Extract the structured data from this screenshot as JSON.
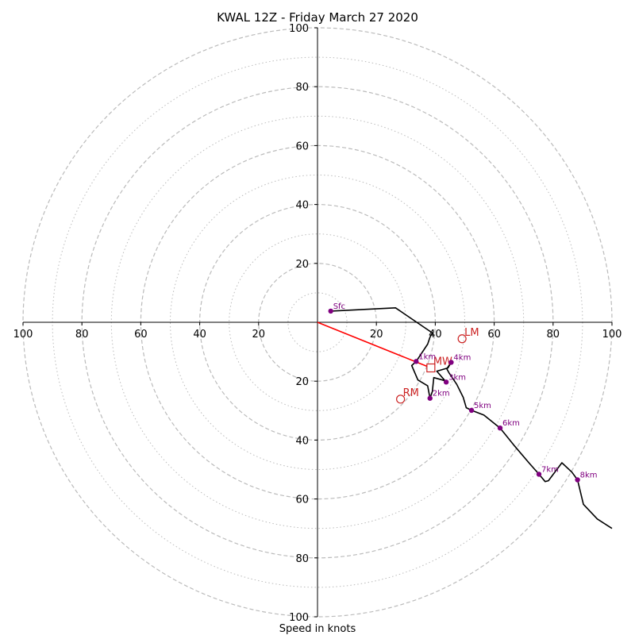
{
  "chart_data": {
    "type": "scatter",
    "subtype": "hodograph",
    "title": "KWAL 12Z - Friday March 27 2020",
    "xlabel": "Speed in knots",
    "ylabel": "",
    "xlim": [
      -100,
      100
    ],
    "ylim": [
      -100,
      100
    ],
    "rings": {
      "dashed": [
        20,
        40,
        60,
        80,
        100
      ],
      "dotted": [
        10,
        30,
        50,
        70,
        90
      ]
    },
    "ticks": {
      "x_left": [
        "100",
        "80",
        "60",
        "40",
        "20"
      ],
      "x_right": [
        "20",
        "40",
        "60",
        "80",
        "100"
      ],
      "y_top": [
        "100",
        "80",
        "60",
        "40",
        "20"
      ],
      "y_bottom": [
        "20",
        "40",
        "60",
        "80",
        "100"
      ]
    },
    "trace": [
      [
        4.5,
        3.8
      ],
      [
        26.5,
        4.9
      ],
      [
        39,
        -3.6
      ],
      [
        38.2,
        -5.1
      ],
      [
        37.4,
        -7.4
      ],
      [
        33.5,
        -13.3
      ],
      [
        32,
        -14.7
      ],
      [
        34.1,
        -19.6
      ],
      [
        37.4,
        -21.6
      ],
      [
        38.2,
        -25.8
      ],
      [
        39,
        -23.5
      ],
      [
        39.5,
        -18.8
      ],
      [
        43.5,
        -19.9
      ],
      [
        43.7,
        -20.3
      ],
      [
        40.5,
        -16.6
      ],
      [
        44.3,
        -15.5
      ],
      [
        45.4,
        -13.6
      ],
      [
        43.9,
        -15.8
      ],
      [
        44.6,
        -17.1
      ],
      [
        47.3,
        -21.1
      ],
      [
        49.5,
        -25.5
      ],
      [
        50.5,
        -29
      ],
      [
        52.3,
        -29.9
      ],
      [
        56.5,
        -31.5
      ],
      [
        62,
        -35.9
      ],
      [
        67,
        -42.1
      ],
      [
        71.7,
        -47.6
      ],
      [
        75.2,
        -51.6
      ],
      [
        77.3,
        -54.1
      ],
      [
        78.4,
        -53.8
      ],
      [
        83,
        -47.7
      ],
      [
        86.4,
        -50.9
      ],
      [
        88.3,
        -53.5
      ],
      [
        90.3,
        -61.8
      ],
      [
        95,
        -66.8
      ],
      [
        100,
        -70
      ]
    ],
    "height_markers": [
      {
        "label": "Sfc",
        "x": 4.5,
        "y": 3.8
      },
      {
        "label": "1km",
        "x": 33.5,
        "y": -13.3
      },
      {
        "label": "2km",
        "x": 38.2,
        "y": -25.8
      },
      {
        "label": "3km",
        "x": 43.7,
        "y": -20.3
      },
      {
        "label": "4km",
        "x": 45.4,
        "y": -13.6
      },
      {
        "label": "5km",
        "x": 52.3,
        "y": -29.9
      },
      {
        "label": "6km",
        "x": 62,
        "y": -35.9
      },
      {
        "label": "7km",
        "x": 75.2,
        "y": -51.6
      },
      {
        "label": "8km",
        "x": 88.3,
        "y": -53.5
      }
    ],
    "storm_motions": [
      {
        "label": "LM",
        "marker": "circle",
        "x": 49.1,
        "y": -5.6
      },
      {
        "label": "MW",
        "marker": "square",
        "x": 38.5,
        "y": -15.5
      },
      {
        "label": "RM",
        "marker": "circle",
        "x": 28.2,
        "y": -26.1
      }
    ],
    "shear_vector": {
      "from": [
        0,
        0
      ],
      "to": [
        37.3,
        -15
      ]
    },
    "colors": {
      "trace": "#000000",
      "height_marker": "#800080",
      "storm_motion": "#cc2222",
      "shear_vector": "#ff0000",
      "ring": "#bbbbbb",
      "axis": "#000000"
    },
    "grid": true
  }
}
